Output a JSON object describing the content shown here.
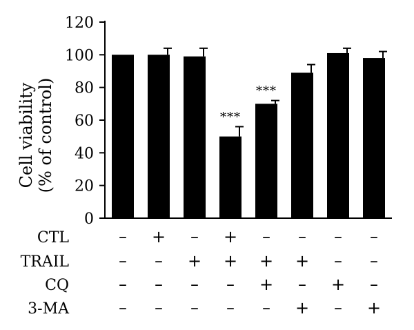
{
  "chart_data": {
    "type": "bar",
    "ylabel_lines": [
      "Cell viability",
      "(% of control)"
    ],
    "ylim": [
      0,
      120
    ],
    "yticks": [
      "0",
      "20",
      "40",
      "60",
      "80",
      "100",
      "120"
    ],
    "grid": false,
    "bar_color": "#000000",
    "bars": [
      {
        "value": 100,
        "error": 0,
        "sig": ""
      },
      {
        "value": 100,
        "error": 4,
        "sig": ""
      },
      {
        "value": 99,
        "error": 5,
        "sig": ""
      },
      {
        "value": 50,
        "error": 6,
        "sig": "***"
      },
      {
        "value": 70,
        "error": 2,
        "sig": "***"
      },
      {
        "value": 89,
        "error": 5,
        "sig": ""
      },
      {
        "value": 101,
        "error": 3,
        "sig": ""
      },
      {
        "value": 98,
        "error": 4,
        "sig": ""
      }
    ],
    "treatment_rows": [
      {
        "label": "CTL",
        "marks": [
          "–",
          "+",
          "–",
          "+",
          "–",
          "–",
          "–",
          "–"
        ]
      },
      {
        "label": "TRAIL",
        "marks": [
          "–",
          "–",
          "+",
          "+",
          "+",
          "+",
          "–",
          "–"
        ]
      },
      {
        "label": "CQ",
        "marks": [
          "–",
          "–",
          "–",
          "–",
          "+",
          "–",
          "+",
          "–"
        ]
      },
      {
        "label": "3-MA",
        "marks": [
          "–",
          "–",
          "–",
          "–",
          "–",
          "+",
          "–",
          "+"
        ]
      }
    ]
  }
}
